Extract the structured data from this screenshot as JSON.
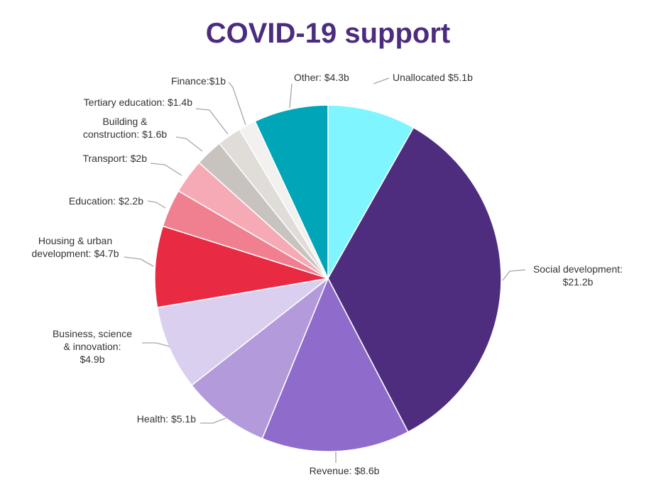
{
  "colors": {
    "title": "#4b2c7e"
  },
  "chart_data": {
    "type": "pie",
    "title": "COVID-19 support",
    "unit": "$b",
    "start": "12 o'clock",
    "direction": "clockwise",
    "slices": [
      {
        "name": "Unallocated",
        "value": 5.1,
        "color": "#7ff6ff",
        "label": [
          "Unallocated $5.1b"
        ]
      },
      {
        "name": "Social development",
        "value": 21.2,
        "color": "#4e2d7f",
        "label": [
          "Social development:",
          "$21.2b"
        ]
      },
      {
        "name": "Revenue",
        "value": 8.6,
        "color": "#8f6bcb",
        "label": [
          "Revenue: $8.6b"
        ]
      },
      {
        "name": "Health",
        "value": 5.1,
        "color": "#b39adb",
        "label": [
          "Health: $5.1b"
        ]
      },
      {
        "name": "Business, science & innovation",
        "value": 4.9,
        "color": "#dacfef",
        "label": [
          "Business, science",
          "& innovation:",
          "$4.9b"
        ]
      },
      {
        "name": "Housing & urban development",
        "value": 4.7,
        "color": "#e92a43",
        "label": [
          "Housing & urban",
          "development: $4.7b"
        ]
      },
      {
        "name": "Education",
        "value": 2.2,
        "color": "#f07f8f",
        "label": [
          "Education: $2.2b"
        ]
      },
      {
        "name": "Transport",
        "value": 2.0,
        "color": "#f6aab5",
        "label": [
          "Transport: $2b"
        ]
      },
      {
        "name": "Building & construction",
        "value": 1.6,
        "color": "#c8c3bf",
        "label": [
          "Building &",
          "construction: $1.6b"
        ]
      },
      {
        "name": "Tertiary education",
        "value": 1.4,
        "color": "#e0ddd9",
        "label": [
          "Tertiary education: $1.4b"
        ]
      },
      {
        "name": "Finance",
        "value": 1.0,
        "color": "#f2f1ef",
        "label": [
          "Finance:$1b"
        ]
      },
      {
        "name": "Other",
        "value": 4.3,
        "color": "#00a6b7",
        "label": [
          "Other: $4.3b"
        ]
      }
    ]
  }
}
